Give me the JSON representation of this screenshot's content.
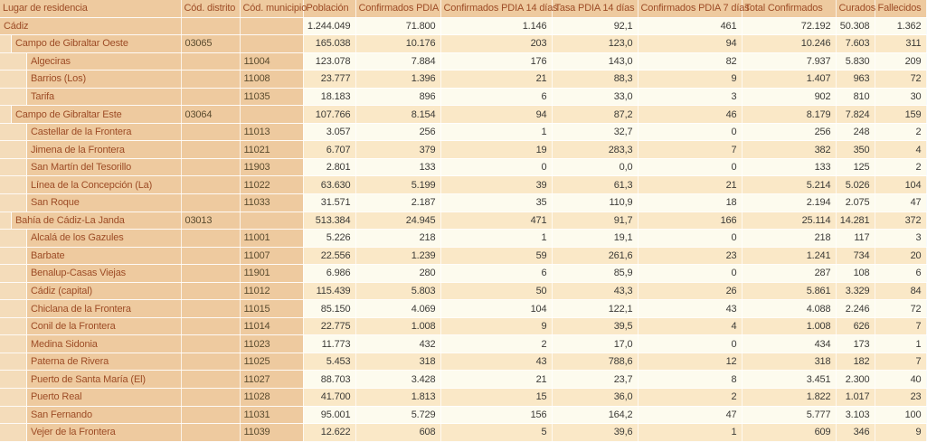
{
  "colors": {
    "tan": "#eeca9f",
    "gutter": "#f4dcba",
    "pale": "#fdfbee",
    "peach": "#fae8c7",
    "rust": "#9d4c26",
    "num": "#3c3b37",
    "code": "#5a4b2e"
  },
  "table": {
    "columns": [
      "Lugar de residencia",
      "Cód. distrito",
      "Cód. municipio",
      "Población",
      "Confirmados PDIA",
      "Confirmados PDIA 14 días",
      "Tasa PDIA 14 días",
      "Confirmados PDIA 7 días",
      "Total Confirmados",
      "Curados",
      "Fallecidos"
    ],
    "rows": [
      {
        "name": "Cádiz",
        "level": 0,
        "distrito": "",
        "municipio": "",
        "values": [
          "1.244.049",
          "71.800",
          "1.146",
          "92,1",
          "461",
          "72.192",
          "50.308",
          "1.362"
        ]
      },
      {
        "name": "Campo de Gibraltar Oeste",
        "level": 1,
        "distrito": "03065",
        "municipio": "",
        "values": [
          "165.038",
          "10.176",
          "203",
          "123,0",
          "94",
          "10.246",
          "7.603",
          "311"
        ]
      },
      {
        "name": "Algeciras",
        "level": 2,
        "distrito": "",
        "municipio": "11004",
        "values": [
          "123.078",
          "7.884",
          "176",
          "143,0",
          "82",
          "7.937",
          "5.830",
          "209"
        ]
      },
      {
        "name": "Barrios (Los)",
        "level": 2,
        "distrito": "",
        "municipio": "11008",
        "values": [
          "23.777",
          "1.396",
          "21",
          "88,3",
          "9",
          "1.407",
          "963",
          "72"
        ]
      },
      {
        "name": "Tarifa",
        "level": 2,
        "distrito": "",
        "municipio": "11035",
        "values": [
          "18.183",
          "896",
          "6",
          "33,0",
          "3",
          "902",
          "810",
          "30"
        ]
      },
      {
        "name": "Campo de Gibraltar Este",
        "level": 1,
        "distrito": "03064",
        "municipio": "",
        "values": [
          "107.766",
          "8.154",
          "94",
          "87,2",
          "46",
          "8.179",
          "7.824",
          "159"
        ]
      },
      {
        "name": "Castellar de la Frontera",
        "level": 2,
        "distrito": "",
        "municipio": "11013",
        "values": [
          "3.057",
          "256",
          "1",
          "32,7",
          "0",
          "256",
          "248",
          "2"
        ]
      },
      {
        "name": "Jimena de la Frontera",
        "level": 2,
        "distrito": "",
        "municipio": "11021",
        "values": [
          "6.707",
          "379",
          "19",
          "283,3",
          "7",
          "382",
          "350",
          "4"
        ]
      },
      {
        "name": "San Martín del Tesorillo",
        "level": 2,
        "distrito": "",
        "municipio": "11903",
        "values": [
          "2.801",
          "133",
          "0",
          "0,0",
          "0",
          "133",
          "125",
          "2"
        ]
      },
      {
        "name": "Línea de la Concepción (La)",
        "level": 2,
        "distrito": "",
        "municipio": "11022",
        "values": [
          "63.630",
          "5.199",
          "39",
          "61,3",
          "21",
          "5.214",
          "5.026",
          "104"
        ]
      },
      {
        "name": "San Roque",
        "level": 2,
        "distrito": "",
        "municipio": "11033",
        "values": [
          "31.571",
          "2.187",
          "35",
          "110,9",
          "18",
          "2.194",
          "2.075",
          "47"
        ]
      },
      {
        "name": "Bahía de Cádiz-La Janda",
        "level": 1,
        "distrito": "03013",
        "municipio": "",
        "values": [
          "513.384",
          "24.945",
          "471",
          "91,7",
          "166",
          "25.114",
          "14.281",
          "372"
        ]
      },
      {
        "name": "Alcalá de los Gazules",
        "level": 2,
        "distrito": "",
        "municipio": "11001",
        "values": [
          "5.226",
          "218",
          "1",
          "19,1",
          "0",
          "218",
          "117",
          "3"
        ]
      },
      {
        "name": "Barbate",
        "level": 2,
        "distrito": "",
        "municipio": "11007",
        "values": [
          "22.556",
          "1.239",
          "59",
          "261,6",
          "23",
          "1.241",
          "734",
          "20"
        ]
      },
      {
        "name": "Benalup-Casas Viejas",
        "level": 2,
        "distrito": "",
        "municipio": "11901",
        "values": [
          "6.986",
          "280",
          "6",
          "85,9",
          "0",
          "287",
          "108",
          "6"
        ]
      },
      {
        "name": "Cádiz (capital)",
        "level": 2,
        "distrito": "",
        "municipio": "11012",
        "values": [
          "115.439",
          "5.803",
          "50",
          "43,3",
          "26",
          "5.861",
          "3.329",
          "84"
        ]
      },
      {
        "name": "Chiclana de la Frontera",
        "level": 2,
        "distrito": "",
        "municipio": "11015",
        "values": [
          "85.150",
          "4.069",
          "104",
          "122,1",
          "43",
          "4.088",
          "2.246",
          "72"
        ]
      },
      {
        "name": "Conil de la Frontera",
        "level": 2,
        "distrito": "",
        "municipio": "11014",
        "values": [
          "22.775",
          "1.008",
          "9",
          "39,5",
          "4",
          "1.008",
          "626",
          "7"
        ]
      },
      {
        "name": "Medina Sidonia",
        "level": 2,
        "distrito": "",
        "municipio": "11023",
        "values": [
          "11.773",
          "432",
          "2",
          "17,0",
          "0",
          "434",
          "173",
          "1"
        ]
      },
      {
        "name": "Paterna de Rivera",
        "level": 2,
        "distrito": "",
        "municipio": "11025",
        "values": [
          "5.453",
          "318",
          "43",
          "788,6",
          "12",
          "318",
          "182",
          "7"
        ]
      },
      {
        "name": "Puerto de Santa María (El)",
        "level": 2,
        "distrito": "",
        "municipio": "11027",
        "values": [
          "88.703",
          "3.428",
          "21",
          "23,7",
          "8",
          "3.451",
          "2.300",
          "40"
        ]
      },
      {
        "name": "Puerto Real",
        "level": 2,
        "distrito": "",
        "municipio": "11028",
        "values": [
          "41.700",
          "1.813",
          "15",
          "36,0",
          "2",
          "1.822",
          "1.017",
          "23"
        ]
      },
      {
        "name": "San Fernando",
        "level": 2,
        "distrito": "",
        "municipio": "11031",
        "values": [
          "95.001",
          "5.729",
          "156",
          "164,2",
          "47",
          "5.777",
          "3.103",
          "100"
        ]
      },
      {
        "name": "Vejer de la Frontera",
        "level": 2,
        "distrito": "",
        "municipio": "11039",
        "values": [
          "12.622",
          "608",
          "5",
          "39,6",
          "1",
          "609",
          "346",
          "9"
        ]
      }
    ],
    "value_column_keys": [
      "poblacion",
      "confirmados-pdia",
      "confirmados-pdia-14-dias",
      "tasa-pdia-14-dias",
      "confirmados-pdia-7-dias",
      "total-confirmados",
      "curados",
      "fallecidos"
    ]
  }
}
